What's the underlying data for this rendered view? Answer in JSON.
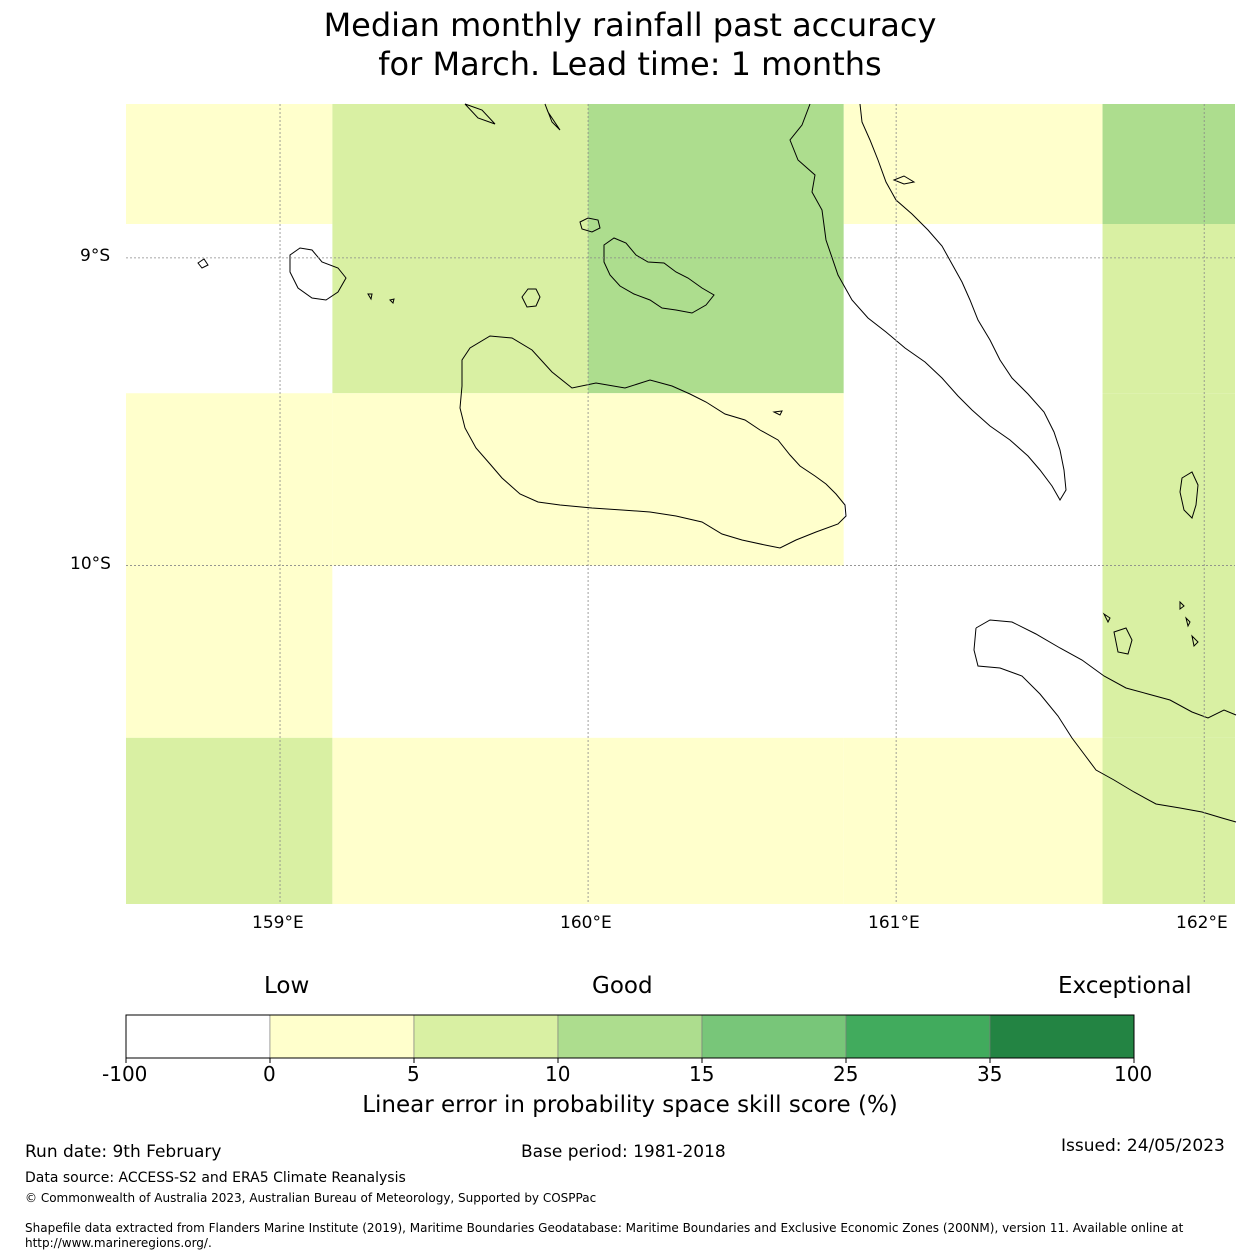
{
  "title": {
    "line1": "Median monthly rainfall past accuracy",
    "line2": "for March. Lead time: 1 months"
  },
  "map": {
    "lat_labels": [
      "9°S",
      "10°S"
    ],
    "lon_labels": [
      "159°E",
      "160°E",
      "161°E",
      "162°E"
    ],
    "extent": {
      "lon_min": 158.5,
      "lon_max": 162.1,
      "lat_max": -8.5,
      "lat_min": -11.1
    },
    "gridlines": {
      "lons": [
        159,
        160,
        161,
        162
      ],
      "lats": [
        -9,
        -10
      ]
    },
    "cells": [
      {
        "lon": [
          158.5,
          159.17
        ],
        "lat": [
          -8.5,
          -8.89
        ],
        "bin": 1
      },
      {
        "lon": [
          159.17,
          160.0
        ],
        "lat": [
          -8.5,
          -8.89
        ],
        "bin": 2
      },
      {
        "lon": [
          160.0,
          160.83
        ],
        "lat": [
          -8.5,
          -8.89
        ],
        "bin": 3
      },
      {
        "lon": [
          160.83,
          161.67
        ],
        "lat": [
          -8.5,
          -8.89
        ],
        "bin": 1
      },
      {
        "lon": [
          161.67,
          162.1
        ],
        "lat": [
          -8.5,
          -8.89
        ],
        "bin": 3
      },
      {
        "lon": [
          158.5,
          159.17
        ],
        "lat": [
          -8.89,
          -9.44
        ],
        "bin": 0
      },
      {
        "lon": [
          159.17,
          160.0
        ],
        "lat": [
          -8.89,
          -9.44
        ],
        "bin": 2
      },
      {
        "lon": [
          160.0,
          160.83
        ],
        "lat": [
          -8.89,
          -9.44
        ],
        "bin": 3
      },
      {
        "lon": [
          160.83,
          161.67
        ],
        "lat": [
          -8.89,
          -9.44
        ],
        "bin": 0
      },
      {
        "lon": [
          161.67,
          162.1
        ],
        "lat": [
          -8.89,
          -9.44
        ],
        "bin": 2
      },
      {
        "lon": [
          158.5,
          159.17
        ],
        "lat": [
          -9.44,
          -10.0
        ],
        "bin": 1
      },
      {
        "lon": [
          159.17,
          160.0
        ],
        "lat": [
          -9.44,
          -10.0
        ],
        "bin": 1
      },
      {
        "lon": [
          160.0,
          160.83
        ],
        "lat": [
          -9.44,
          -10.0
        ],
        "bin": 1
      },
      {
        "lon": [
          160.83,
          161.67
        ],
        "lat": [
          -9.44,
          -10.0
        ],
        "bin": 0
      },
      {
        "lon": [
          161.67,
          162.1
        ],
        "lat": [
          -9.44,
          -10.0
        ],
        "bin": 2
      },
      {
        "lon": [
          158.5,
          159.17
        ],
        "lat": [
          -10.0,
          -10.56
        ],
        "bin": 1
      },
      {
        "lon": [
          159.17,
          160.0
        ],
        "lat": [
          -10.0,
          -10.56
        ],
        "bin": 0
      },
      {
        "lon": [
          160.0,
          160.83
        ],
        "lat": [
          -10.0,
          -10.56
        ],
        "bin": 0
      },
      {
        "lon": [
          160.83,
          161.67
        ],
        "lat": [
          -10.0,
          -10.56
        ],
        "bin": 0
      },
      {
        "lon": [
          161.67,
          162.1
        ],
        "lat": [
          -10.0,
          -10.56
        ],
        "bin": 2
      },
      {
        "lon": [
          158.5,
          159.17
        ],
        "lat": [
          -10.56,
          -11.1
        ],
        "bin": 2
      },
      {
        "lon": [
          159.17,
          160.0
        ],
        "lat": [
          -10.56,
          -11.1
        ],
        "bin": 1
      },
      {
        "lon": [
          160.0,
          160.83
        ],
        "lat": [
          -10.56,
          -11.1
        ],
        "bin": 1
      },
      {
        "lon": [
          160.83,
          161.67
        ],
        "lat": [
          -10.56,
          -11.1
        ],
        "bin": 1
      },
      {
        "lon": [
          161.67,
          162.1
        ],
        "lat": [
          -10.56,
          -11.1
        ],
        "bin": 2
      }
    ]
  },
  "legend": {
    "categories": [
      "Low",
      "Good",
      "Exceptional"
    ],
    "ticks": [
      "-100",
      "0",
      "5",
      "10",
      "15",
      "25",
      "35",
      "100"
    ],
    "colors": [
      "#ffffff",
      "#ffffcc",
      "#d9f0a3",
      "#addd8e",
      "#78c679",
      "#41ab5d",
      "#238443"
    ],
    "label": "Linear error in probability space skill score (%)"
  },
  "footer": {
    "run_date": "Run date: 9th February",
    "base_period": "Base period: 1981-2018",
    "issued": "Issued: 24/05/2023",
    "data_source": "Data source: ACCESS-S2 and ERA5 Climate Reanalysis",
    "copyright": "© Commonwealth of Australia 2023, Australian Bureau of Meteorology, Supported by COSPPac",
    "shapefile": "Shapefile data extracted from Flanders Marine Institute (2019), Maritime Boundaries Geodatabase: Maritime Boundaries and Exclusive Economic Zones (200NM), version 11. Available online at http://www.marineregions.org/."
  }
}
